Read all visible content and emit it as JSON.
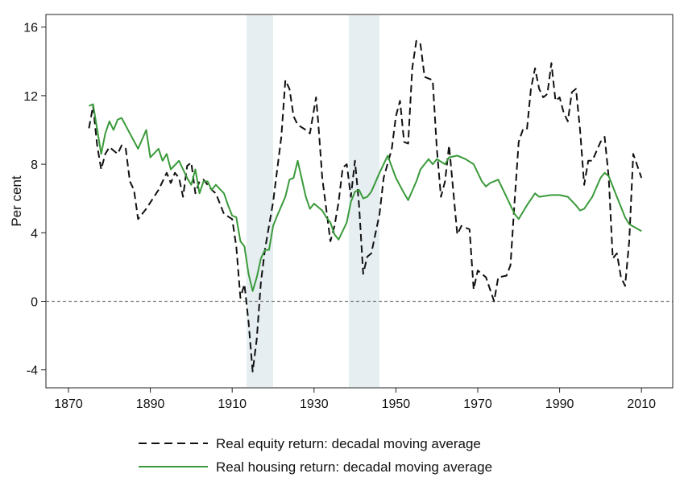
{
  "chart_data": {
    "type": "line",
    "title": "",
    "xlabel": "",
    "ylabel": "Per cent",
    "xlim": [
      1864.5,
      2018
    ],
    "ylim": [
      -5,
      16.7
    ],
    "x_ticks": [
      1870,
      1890,
      1910,
      1930,
      1950,
      1970,
      1990,
      2010
    ],
    "y_ticks": [
      -4,
      0,
      4,
      8,
      12,
      16
    ],
    "grid": false,
    "reference_line": {
      "y": 0,
      "style": "dashed",
      "color": "#777777"
    },
    "shaded_periods": [
      {
        "from": 1913.5,
        "to": 1920
      },
      {
        "from": 1938.5,
        "to": 1946
      }
    ],
    "shade_color": "#e6eef2",
    "legend_placement": "bottom",
    "series": [
      {
        "name": "Real equity return: decadal moving average",
        "color": "#111111",
        "style": "dashed",
        "points": [
          [
            1875,
            10.1
          ],
          [
            1876,
            11.4
          ],
          [
            1877,
            9.1
          ],
          [
            1878,
            7.7
          ],
          [
            1879,
            8.6
          ],
          [
            1880,
            9.0
          ],
          [
            1882,
            8.6
          ],
          [
            1883,
            9.1
          ],
          [
            1884,
            8.9
          ],
          [
            1885,
            7.0
          ],
          [
            1886,
            6.5
          ],
          [
            1887,
            4.8
          ],
          [
            1889,
            5.4
          ],
          [
            1892,
            6.5
          ],
          [
            1894,
            7.5
          ],
          [
            1895,
            6.9
          ],
          [
            1896,
            7.5
          ],
          [
            1897,
            7.2
          ],
          [
            1898,
            6.1
          ],
          [
            1899,
            7.9
          ],
          [
            1900,
            8.1
          ],
          [
            1901,
            6.3
          ],
          [
            1902,
            7.0
          ],
          [
            1903,
            7.1
          ],
          [
            1905,
            6.5
          ],
          [
            1906,
            6.3
          ],
          [
            1908,
            5.1
          ],
          [
            1910,
            4.8
          ],
          [
            1911,
            3.2
          ],
          [
            1912,
            0.2
          ],
          [
            1913,
            1.0
          ],
          [
            1914,
            -1.2
          ],
          [
            1915,
            -4.1
          ],
          [
            1916,
            -2.2
          ],
          [
            1917,
            1.1
          ],
          [
            1918,
            3.0
          ],
          [
            1920,
            5.8
          ],
          [
            1922,
            9.6
          ],
          [
            1923,
            12.9
          ],
          [
            1924,
            12.4
          ],
          [
            1925,
            10.8
          ],
          [
            1926,
            10.3
          ],
          [
            1928,
            10.0
          ],
          [
            1929,
            9.8
          ],
          [
            1930.5,
            11.9
          ],
          [
            1931,
            10.5
          ],
          [
            1932,
            7.2
          ],
          [
            1934,
            3.5
          ],
          [
            1935,
            4.4
          ],
          [
            1936,
            5.8
          ],
          [
            1937,
            7.8
          ],
          [
            1938,
            8.0
          ],
          [
            1939,
            6.1
          ],
          [
            1940,
            8.2
          ],
          [
            1941,
            5.6
          ],
          [
            1942,
            1.6
          ],
          [
            1943,
            2.6
          ],
          [
            1944,
            2.8
          ],
          [
            1946,
            5.1
          ],
          [
            1947,
            7.2
          ],
          [
            1949,
            8.9
          ],
          [
            1950,
            10.8
          ],
          [
            1951,
            11.7
          ],
          [
            1952,
            9.3
          ],
          [
            1953,
            9.2
          ],
          [
            1954,
            13.6
          ],
          [
            1955,
            15.2
          ],
          [
            1956,
            15.0
          ],
          [
            1957,
            13.1
          ],
          [
            1958,
            13.0
          ],
          [
            1959,
            12.9
          ],
          [
            1960,
            8.9
          ],
          [
            1961,
            6.1
          ],
          [
            1962,
            7.0
          ],
          [
            1963,
            9.1
          ],
          [
            1964,
            6.5
          ],
          [
            1965,
            3.9
          ],
          [
            1966,
            4.4
          ],
          [
            1968,
            4.2
          ],
          [
            1969,
            0.7
          ],
          [
            1970,
            1.8
          ],
          [
            1971,
            1.6
          ],
          [
            1972,
            1.4
          ],
          [
            1974,
            0.0
          ],
          [
            1975,
            1.4
          ],
          [
            1977,
            1.5
          ],
          [
            1978,
            2.1
          ],
          [
            1979,
            5.8
          ],
          [
            1980,
            9.3
          ],
          [
            1981,
            10.0
          ],
          [
            1982,
            10.0
          ],
          [
            1983,
            12.4
          ],
          [
            1984,
            13.6
          ],
          [
            1985,
            12.4
          ],
          [
            1986,
            11.9
          ],
          [
            1987,
            12.1
          ],
          [
            1988,
            13.9
          ],
          [
            1989,
            11.7
          ],
          [
            1990,
            11.9
          ],
          [
            1991,
            11.0
          ],
          [
            1992,
            10.5
          ],
          [
            1993,
            12.2
          ],
          [
            1994,
            12.4
          ],
          [
            1995,
            10.0
          ],
          [
            1996,
            6.8
          ],
          [
            1997,
            8.2
          ],
          [
            1998,
            8.2
          ],
          [
            2000,
            9.3
          ],
          [
            2001,
            9.6
          ],
          [
            2002,
            7.2
          ],
          [
            2003,
            2.5
          ],
          [
            2004,
            2.8
          ],
          [
            2005,
            1.4
          ],
          [
            2006,
            0.9
          ],
          [
            2007,
            3.5
          ],
          [
            2008,
            8.6
          ],
          [
            2009,
            7.9
          ],
          [
            2010,
            7.2
          ]
        ]
      },
      {
        "name": "Real housing return: decadal moving average",
        "color": "#3a9a3a",
        "style": "solid",
        "points": [
          [
            1875,
            11.4
          ],
          [
            1876,
            11.5
          ],
          [
            1878,
            8.6
          ],
          [
            1879,
            9.8
          ],
          [
            1880,
            10.5
          ],
          [
            1881,
            10.0
          ],
          [
            1882,
            10.6
          ],
          [
            1883,
            10.7
          ],
          [
            1885,
            9.8
          ],
          [
            1887,
            8.9
          ],
          [
            1889,
            10.0
          ],
          [
            1890,
            8.4
          ],
          [
            1892,
            8.9
          ],
          [
            1893,
            8.2
          ],
          [
            1894,
            8.6
          ],
          [
            1895,
            7.7
          ],
          [
            1897,
            8.2
          ],
          [
            1898,
            7.7
          ],
          [
            1899,
            7.2
          ],
          [
            1900,
            6.8
          ],
          [
            1901,
            7.7
          ],
          [
            1902,
            6.3
          ],
          [
            1903,
            7.0
          ],
          [
            1904,
            7.0
          ],
          [
            1905,
            6.5
          ],
          [
            1906,
            6.8
          ],
          [
            1908,
            6.3
          ],
          [
            1909,
            5.6
          ],
          [
            1910,
            5.0
          ],
          [
            1911,
            4.9
          ],
          [
            1912,
            3.5
          ],
          [
            1913,
            3.2
          ],
          [
            1914,
            1.6
          ],
          [
            1915,
            0.6
          ],
          [
            1916,
            1.4
          ],
          [
            1917,
            2.5
          ],
          [
            1918,
            3.0
          ],
          [
            1919,
            3.0
          ],
          [
            1920,
            4.4
          ],
          [
            1921,
            5.0
          ],
          [
            1923,
            6.1
          ],
          [
            1924,
            7.1
          ],
          [
            1925,
            7.2
          ],
          [
            1926,
            8.2
          ],
          [
            1928,
            6.1
          ],
          [
            1929,
            5.4
          ],
          [
            1930,
            5.7
          ],
          [
            1932,
            5.3
          ],
          [
            1933,
            4.9
          ],
          [
            1934,
            4.6
          ],
          [
            1935,
            3.9
          ],
          [
            1936,
            3.6
          ],
          [
            1938,
            4.6
          ],
          [
            1939,
            5.8
          ],
          [
            1940,
            6.4
          ],
          [
            1941,
            6.5
          ],
          [
            1942,
            6.0
          ],
          [
            1943,
            6.1
          ],
          [
            1944,
            6.4
          ],
          [
            1946,
            7.5
          ],
          [
            1948,
            8.5
          ],
          [
            1950,
            7.2
          ],
          [
            1952,
            6.3
          ],
          [
            1953,
            5.9
          ],
          [
            1955,
            7.0
          ],
          [
            1956,
            7.7
          ],
          [
            1958,
            8.3
          ],
          [
            1959,
            8.0
          ],
          [
            1960,
            8.3
          ],
          [
            1962,
            8.0
          ],
          [
            1963,
            8.4
          ],
          [
            1965,
            8.5
          ],
          [
            1967,
            8.3
          ],
          [
            1969,
            8.0
          ],
          [
            1971,
            7.0
          ],
          [
            1972,
            6.7
          ],
          [
            1973,
            6.9
          ],
          [
            1975,
            7.1
          ],
          [
            1977,
            6.1
          ],
          [
            1979,
            5.1
          ],
          [
            1980,
            4.8
          ],
          [
            1982,
            5.6
          ],
          [
            1984,
            6.3
          ],
          [
            1985,
            6.1
          ],
          [
            1988,
            6.2
          ],
          [
            1990,
            6.2
          ],
          [
            1992,
            6.1
          ],
          [
            1994,
            5.6
          ],
          [
            1995,
            5.3
          ],
          [
            1996,
            5.4
          ],
          [
            1998,
            6.1
          ],
          [
            2000,
            7.2
          ],
          [
            2001,
            7.5
          ],
          [
            2002,
            7.3
          ],
          [
            2004,
            6.1
          ],
          [
            2006,
            4.9
          ],
          [
            2007,
            4.5
          ],
          [
            2010,
            4.1
          ]
        ]
      }
    ]
  }
}
